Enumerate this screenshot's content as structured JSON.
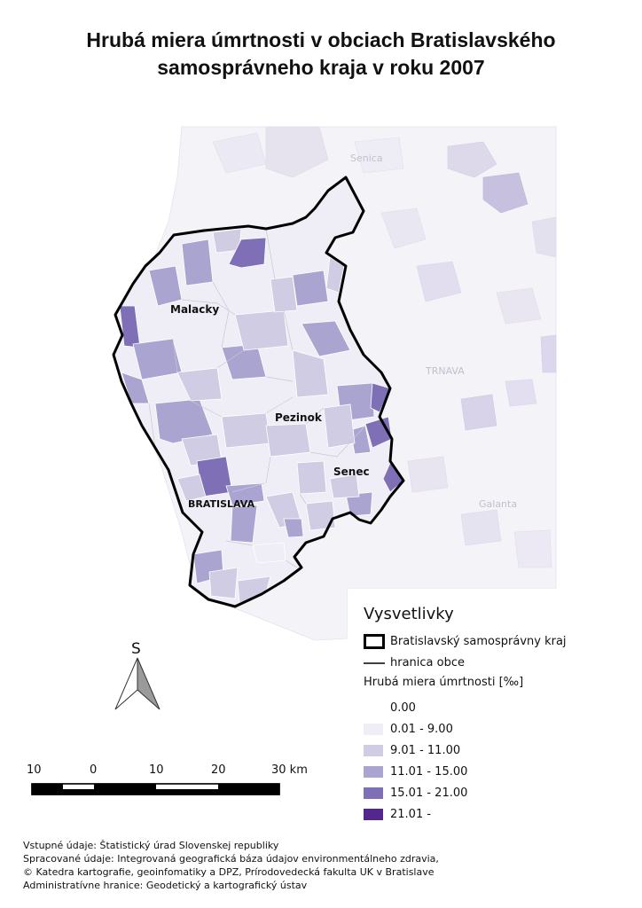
{
  "title": {
    "line1": "Hrubá miera úmrtnosti v obciach Bratislavského",
    "line2": "samosprávneho kraja v roku 2007"
  },
  "map": {
    "city_labels": {
      "malacky": "Malacky",
      "pezinok": "Pezinok",
      "senec": "Senec",
      "bratislava": "BRATISLAVA"
    },
    "background_labels": {
      "senica": "Senica",
      "trnava": "TRNAVA",
      "galanta": "Galanta"
    }
  },
  "north_arrow": {
    "label": "S"
  },
  "scale_bar": {
    "labels": [
      "10",
      "0",
      "10",
      "20",
      "30 km"
    ]
  },
  "legend": {
    "title": "Vysvetlivky",
    "boundary_region": "Bratislavský samosprávny kraj",
    "boundary_municipality": "hranica obce",
    "variable": "Hrubá miera úmrtnosti [‰]",
    "classes": [
      {
        "label": "0.00",
        "color": "#ffffff"
      },
      {
        "label": "0.01 - 9.00",
        "color": "#efedf5"
      },
      {
        "label": "9.01 - 11.00",
        "color": "#d0cce4"
      },
      {
        "label": "11.01 - 15.00",
        "color": "#aaa5d0"
      },
      {
        "label": "15.01 - 21.00",
        "color": "#7f6fb6"
      },
      {
        "label": "21.01 -",
        "color": "#54278f"
      }
    ]
  },
  "credits": [
    "Vstupné údaje: Štatistický úrad Slovenskej republiky",
    "Spracované údaje: Integrovaná geografická báza údajov environmentálneho zdravia,",
    "© Katedra kartografie, geoinfomatiky a DPZ, Prírodovedecká fakulta UK v Bratislave",
    "Administratívne hranice: Geodetický a kartografický ústav"
  ]
}
